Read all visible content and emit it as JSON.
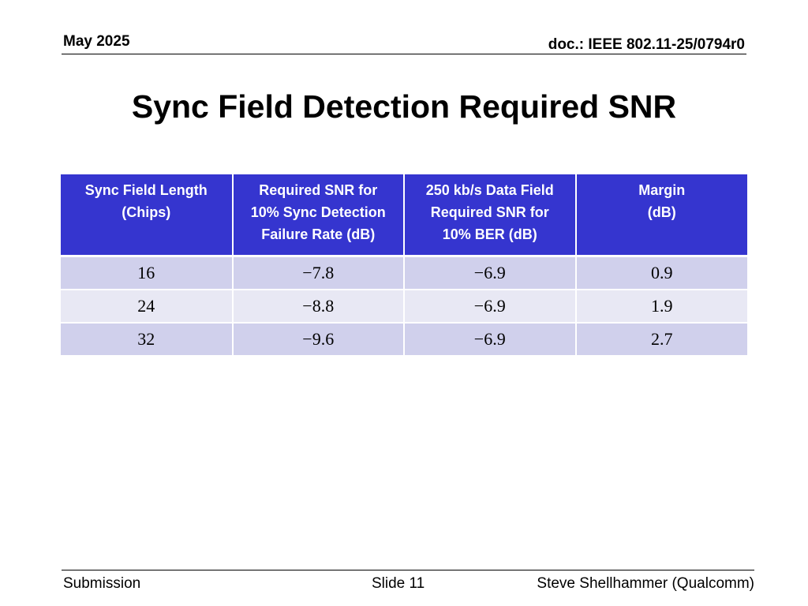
{
  "header": {
    "date": "May 2025",
    "doc": "doc.: IEEE 802.11-25/0794r0"
  },
  "slide": {
    "title": "Sync Field Detection Required SNR"
  },
  "table": {
    "headers": [
      "Sync Field Length\n(Chips)",
      "Required SNR for\n10% Sync Detection\nFailure Rate (dB)",
      "250 kb/s Data Field\nRequired SNR for\n10% BER (dB)",
      "Margin\n(dB)"
    ],
    "rows": [
      [
        "16",
        "−7.8",
        "−6.9",
        "0.9"
      ],
      [
        "24",
        "−8.8",
        "−6.9",
        "1.9"
      ],
      [
        "32",
        "−9.6",
        "−6.9",
        "2.7"
      ]
    ]
  },
  "footer": {
    "left": "Submission",
    "center": "Slide 11",
    "right": "Steve Shellhammer (Qualcomm)"
  }
}
